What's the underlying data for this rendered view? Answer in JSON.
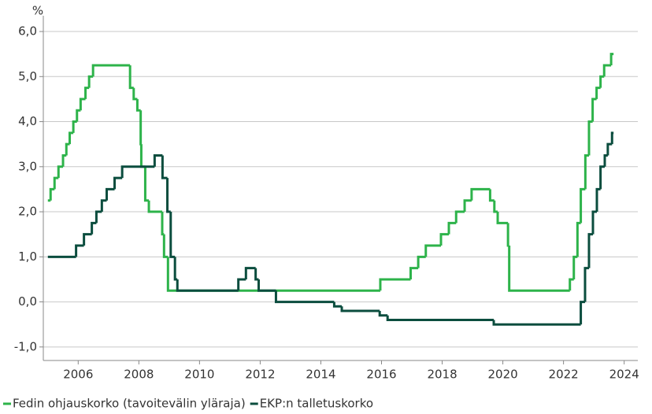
{
  "chart_data": {
    "type": "step",
    "y_label": "%",
    "xlim": [
      2004.85,
      2024.45
    ],
    "ylim": [
      -1.3,
      6.35
    ],
    "xticks": [
      2006,
      2008,
      2010,
      2012,
      2014,
      2016,
      2018,
      2020,
      2022,
      2024
    ],
    "yticks": [
      {
        "value": -1,
        "label": "-1,0"
      },
      {
        "value": 0,
        "label": "0,0"
      },
      {
        "value": 1,
        "label": "1,0"
      },
      {
        "value": 2,
        "label": "2,0"
      },
      {
        "value": 3,
        "label": "3,0"
      },
      {
        "value": 4,
        "label": "4,0"
      },
      {
        "value": 5,
        "label": "5,0"
      },
      {
        "value": 6,
        "label": "6,0"
      }
    ],
    "grid": true,
    "legend": "bottom",
    "series": [
      {
        "name": "Fedin ohjauskorko (tavoitevälin yläraja)",
        "color": "#2db34a",
        "x": [
          2005.0,
          2005.09,
          2005.22,
          2005.35,
          2005.5,
          2005.61,
          2005.72,
          2005.84,
          2005.96,
          2006.08,
          2006.24,
          2006.36,
          2006.49,
          2007.71,
          2007.83,
          2007.95,
          2008.06,
          2008.08,
          2008.21,
          2008.33,
          2008.77,
          2008.83,
          2008.96,
          2015.96,
          2016.96,
          2017.21,
          2017.46,
          2017.96,
          2018.22,
          2018.46,
          2018.74,
          2018.97,
          2019.58,
          2019.72,
          2019.83,
          2020.17,
          2020.21,
          2022.21,
          2022.34,
          2022.46,
          2022.57,
          2022.72,
          2022.84,
          2022.96,
          2023.09,
          2023.22,
          2023.34,
          2023.57,
          2023.65
        ],
        "values": [
          2.25,
          2.5,
          2.75,
          3.0,
          3.25,
          3.5,
          3.75,
          4.0,
          4.25,
          4.5,
          4.75,
          5.0,
          5.25,
          4.75,
          4.5,
          4.25,
          3.5,
          3.0,
          2.25,
          2.0,
          1.5,
          1.0,
          0.25,
          0.5,
          0.75,
          1.0,
          1.25,
          1.5,
          1.75,
          2.0,
          2.25,
          2.5,
          2.25,
          2.0,
          1.75,
          1.25,
          0.25,
          0.5,
          1.0,
          1.75,
          2.5,
          3.25,
          4.0,
          4.5,
          4.75,
          5.0,
          5.25,
          5.5,
          5.5
        ]
      },
      {
        "name": "EKP:n talletuskorko",
        "color": "#0b4d3e",
        "x": [
          2005.0,
          2005.93,
          2006.19,
          2006.45,
          2006.6,
          2006.78,
          2006.94,
          2007.2,
          2007.45,
          2008.52,
          2008.78,
          2008.94,
          2009.05,
          2009.19,
          2009.27,
          2011.28,
          2011.53,
          2011.85,
          2011.95,
          2012.52,
          2014.44,
          2014.69,
          2015.94,
          2016.2,
          2019.7,
          2022.57,
          2022.71,
          2022.84,
          2022.97,
          2023.1,
          2023.22,
          2023.36,
          2023.46,
          2023.6,
          2023.65
        ],
        "values": [
          1.0,
          1.25,
          1.5,
          1.75,
          2.0,
          2.25,
          2.5,
          2.75,
          3.0,
          3.25,
          2.75,
          2.0,
          1.0,
          0.5,
          0.25,
          0.5,
          0.75,
          0.5,
          0.25,
          0.0,
          -0.1,
          -0.2,
          -0.3,
          -0.4,
          -0.5,
          0.0,
          0.75,
          1.5,
          2.0,
          2.5,
          3.0,
          3.25,
          3.5,
          3.75,
          3.75
        ]
      }
    ]
  }
}
